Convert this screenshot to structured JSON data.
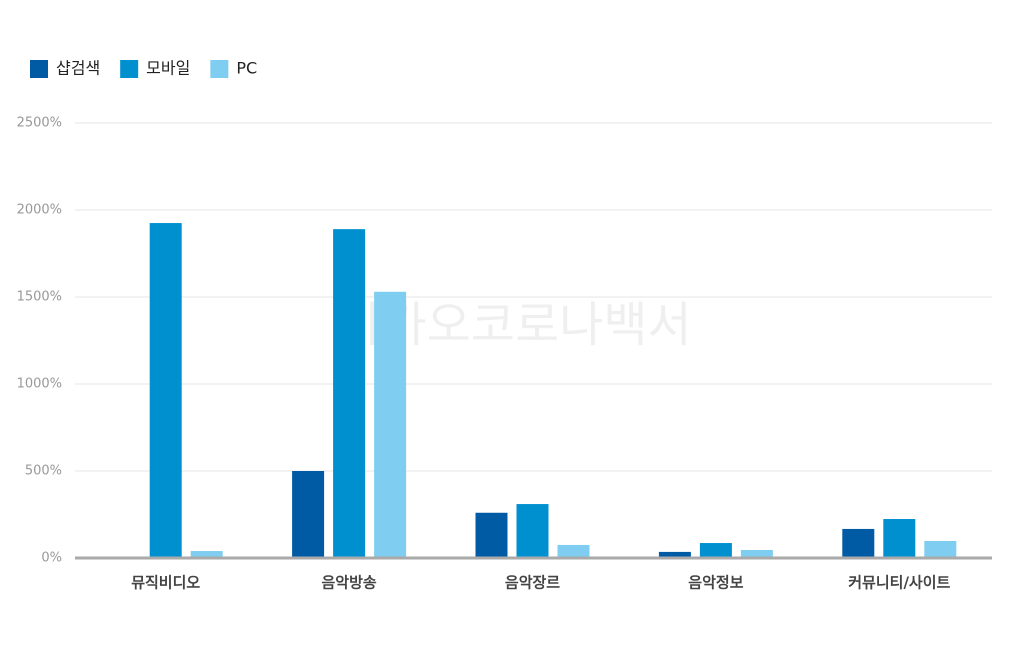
{
  "chart_data": {
    "type": "bar",
    "watermark": "카카오코로나백서",
    "categories": [
      "뮤직비디오",
      "음악방송",
      "음악장르",
      "음악정보",
      "커뮤니티/사이트"
    ],
    "series": [
      {
        "name": "샵검색",
        "color": "#005ba4",
        "values": [
          0,
          500,
          260,
          35,
          167
        ]
      },
      {
        "name": "모바일",
        "color": "#0090d0",
        "values": [
          1925,
          1890,
          310,
          86,
          224
        ]
      },
      {
        "name": "PC",
        "color": "#7fcdf0",
        "values": [
          40,
          1530,
          75,
          46,
          98
        ]
      }
    ],
    "ylim": [
      0,
      2500
    ],
    "yticks": [
      {
        "value": 0,
        "label": "0%"
      },
      {
        "value": 500,
        "label": "500%"
      },
      {
        "value": 1000,
        "label": "1000%"
      },
      {
        "value": 1500,
        "label": "1500%"
      },
      {
        "value": 2000,
        "label": "2000%"
      },
      {
        "value": 2500,
        "label": "2500%"
      }
    ],
    "grid": true
  }
}
